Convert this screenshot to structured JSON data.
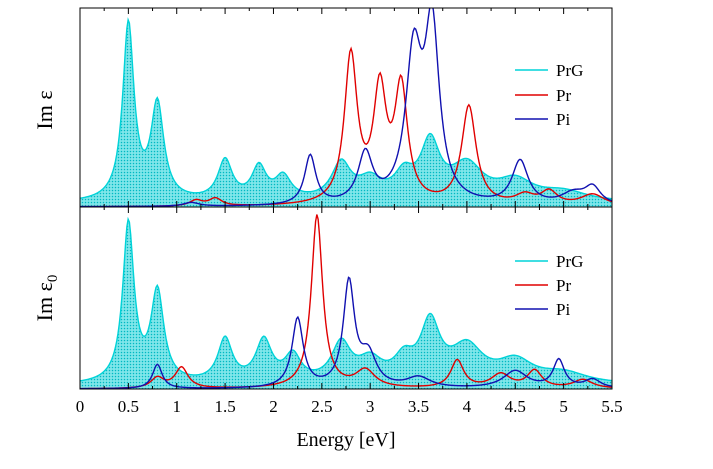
{
  "chart_data": {
    "type": "area",
    "shared_x_axis": {
      "label": "Energy [eV]",
      "range": [
        0,
        5.5
      ],
      "ticks": [
        0,
        0.5,
        1,
        1.5,
        2,
        2.5,
        3,
        3.5,
        4,
        4.5,
        5,
        5.5
      ],
      "tick_labels": [
        "0",
        "0.5",
        "1",
        "1.5",
        "2",
        "2.5",
        "3",
        "3.5",
        "4",
        "4.5",
        "5",
        "5.5"
      ]
    },
    "panels": [
      {
        "id": "top",
        "ylabel_main": "Im ε",
        "ylabel_sub": "",
        "ylim": [
          0,
          1.05
        ],
        "legend_position": "top-right",
        "legend": [
          {
            "name": "PrG",
            "color": "#00d3d8"
          },
          {
            "name": "Pr",
            "color": "#e00000"
          },
          {
            "name": "Pi",
            "color": "#1010b0"
          }
        ],
        "series": [
          {
            "name": "PrG",
            "color": "#00d3d8",
            "fill": true,
            "baseline": 0.02,
            "peaks": [
              [
                0.5,
                0.93,
                0.07
              ],
              [
                0.8,
                0.5,
                0.08
              ],
              [
                1.5,
                0.21,
                0.09
              ],
              [
                1.85,
                0.17,
                0.09
              ],
              [
                2.1,
                0.12,
                0.1
              ],
              [
                2.7,
                0.19,
                0.12
              ],
              [
                3.0,
                0.1,
                0.15
              ],
              [
                3.35,
                0.12,
                0.12
              ],
              [
                3.62,
                0.29,
                0.12
              ],
              [
                4.0,
                0.18,
                0.2
              ],
              [
                4.5,
                0.1,
                0.22
              ],
              [
                5.0,
                0.05,
                0.3
              ]
            ]
          },
          {
            "name": "Pr",
            "color": "#e00000",
            "fill": false,
            "baseline": 0.0,
            "peaks": [
              [
                1.2,
                0.03,
                0.08
              ],
              [
                1.4,
                0.04,
                0.08
              ],
              [
                2.8,
                0.78,
                0.08
              ],
              [
                3.1,
                0.58,
                0.08
              ],
              [
                3.32,
                0.6,
                0.08
              ],
              [
                4.02,
                0.52,
                0.09
              ],
              [
                4.6,
                0.05,
                0.12
              ],
              [
                4.85,
                0.07,
                0.1
              ],
              [
                5.3,
                0.06,
                0.15
              ]
            ]
          },
          {
            "name": "Pi",
            "color": "#1010b0",
            "fill": false,
            "baseline": 0.0,
            "peaks": [
              [
                1.15,
                0.02,
                0.1
              ],
              [
                2.38,
                0.26,
                0.07
              ],
              [
                2.95,
                0.26,
                0.09
              ],
              [
                3.45,
                0.76,
                0.1
              ],
              [
                3.64,
                0.9,
                0.09
              ],
              [
                4.55,
                0.23,
                0.1
              ],
              [
                5.1,
                0.06,
                0.15
              ],
              [
                5.3,
                0.09,
                0.1
              ]
            ]
          }
        ]
      },
      {
        "id": "bottom",
        "ylabel_main": "Im ε",
        "ylabel_sub": "0",
        "ylim": [
          0,
          1.05
        ],
        "legend_position": "top-right",
        "legend": [
          {
            "name": "PrG",
            "color": "#00d3d8"
          },
          {
            "name": "Pr",
            "color": "#e00000"
          },
          {
            "name": "Pi",
            "color": "#1010b0"
          }
        ],
        "series": [
          {
            "name": "PrG",
            "color": "#00d3d8",
            "fill": true,
            "baseline": 0.02,
            "peaks": [
              [
                0.5,
                0.92,
                0.07
              ],
              [
                0.8,
                0.52,
                0.08
              ],
              [
                1.5,
                0.25,
                0.09
              ],
              [
                1.9,
                0.24,
                0.1
              ],
              [
                2.2,
                0.15,
                0.1
              ],
              [
                2.7,
                0.22,
                0.12
              ],
              [
                3.0,
                0.12,
                0.15
              ],
              [
                3.35,
                0.12,
                0.12
              ],
              [
                3.62,
                0.33,
                0.12
              ],
              [
                4.0,
                0.2,
                0.2
              ],
              [
                4.5,
                0.12,
                0.22
              ],
              [
                5.0,
                0.06,
                0.3
              ]
            ]
          },
          {
            "name": "Pr",
            "color": "#e00000",
            "fill": false,
            "baseline": 0.0,
            "peaks": [
              [
                0.8,
                0.06,
                0.08
              ],
              [
                1.05,
                0.12,
                0.08
              ],
              [
                2.45,
                1.0,
                0.07
              ],
              [
                2.95,
                0.1,
                0.12
              ],
              [
                3.9,
                0.16,
                0.08
              ],
              [
                4.35,
                0.08,
                0.12
              ],
              [
                4.7,
                0.1,
                0.09
              ],
              [
                5.2,
                0.05,
                0.12
              ]
            ]
          },
          {
            "name": "Pi",
            "color": "#1010b0",
            "fill": false,
            "baseline": 0.0,
            "peaks": [
              [
                0.8,
                0.14,
                0.06
              ],
              [
                2.25,
                0.4,
                0.07
              ],
              [
                2.78,
                0.6,
                0.07
              ],
              [
                2.98,
                0.18,
                0.1
              ],
              [
                3.5,
                0.06,
                0.15
              ],
              [
                4.5,
                0.1,
                0.15
              ],
              [
                4.95,
                0.16,
                0.07
              ],
              [
                5.3,
                0.05,
                0.1
              ]
            ]
          }
        ]
      }
    ]
  }
}
